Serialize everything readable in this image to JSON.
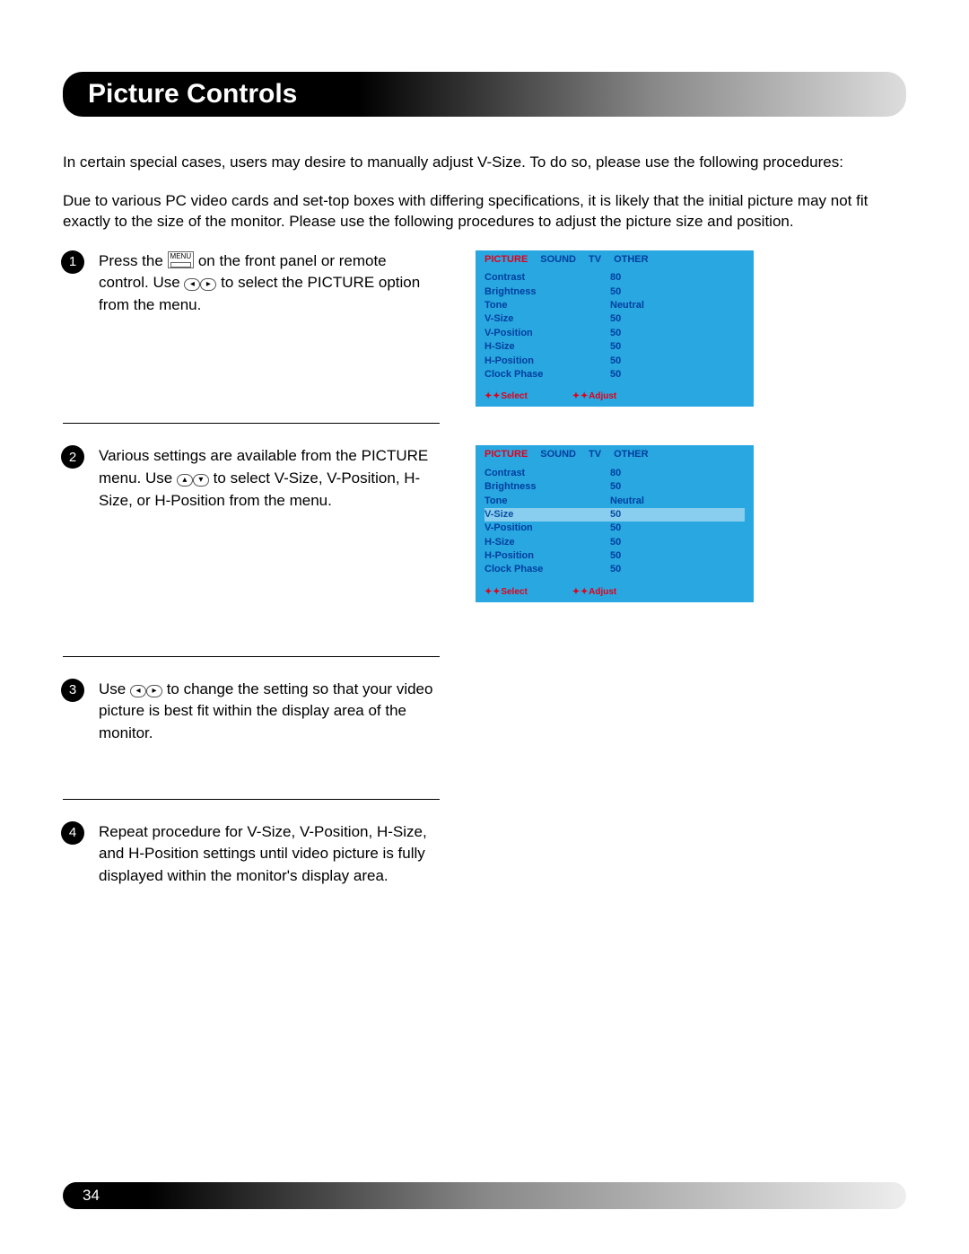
{
  "title": "Picture Controls",
  "intro1": "In certain special cases, users may desire to manually adjust V-Size. To do so, please use the following procedures:",
  "intro2": "Due to various PC video cards and set-top boxes with differing specifications, it is likely that the initial picture may not fit exactly to the size of the monitor.  Please use the following procedures to adjust the picture size and position.",
  "steps": {
    "s1a": "Press the ",
    "s1b": " on the front panel or remote control.  Use ",
    "s1c": " to select the PICTURE option from the menu.",
    "s2a": "Various settings are available from the PICTURE menu.  Use ",
    "s2b": " to select V-Size, V-Position, H-Size, or H-Position from the menu.",
    "s3a": "Use ",
    "s3b": " to change the setting so that your video picture is best fit within the display area of the monitor.",
    "s4": "Repeat procedure for V-Size, V-Position, H-Size, and H-Position settings until video picture is fully displayed within the monitor's display area."
  },
  "menuLabel": "MENU",
  "osd": {
    "bg": "#29a7e1",
    "tabs": [
      "PICTURE",
      "SOUND",
      "TV",
      "OTHER"
    ],
    "rows": [
      {
        "lbl": "Contrast",
        "val": "80"
      },
      {
        "lbl": "Brightness",
        "val": "50"
      },
      {
        "lbl": "Tone",
        "val": "Neutral"
      },
      {
        "lbl": "V-Size",
        "val": "50"
      },
      {
        "lbl": "V-Position",
        "val": "50"
      },
      {
        "lbl": "H-Size",
        "val": "50"
      },
      {
        "lbl": "H-Position",
        "val": "50"
      },
      {
        "lbl": "Clock Phase",
        "val": "50"
      }
    ],
    "footer": [
      "Select",
      "Adjust"
    ],
    "highlight2": 3
  },
  "pageNumber": "34"
}
